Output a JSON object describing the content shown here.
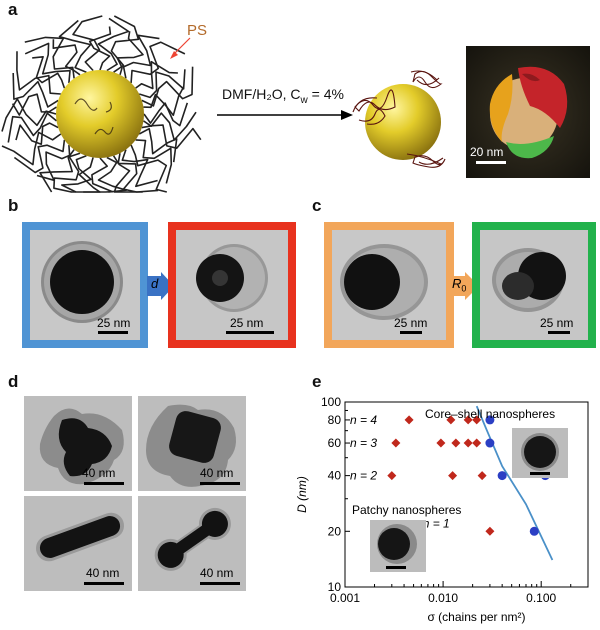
{
  "panels": {
    "a": {
      "label": "a",
      "ps_label": "PS",
      "condition": "DMF/H₂O, C",
      "condition_sub": "w",
      "condition_tail": " = 4%",
      "scale": "20 nm"
    },
    "b": {
      "label": "b",
      "arrow_label": "d",
      "scale_left": "25 nm",
      "scale_right": "25 nm"
    },
    "c": {
      "label": "c",
      "arrow_label": "R",
      "arrow_sub": "0",
      "scale_left": "25 nm",
      "scale_right": "25 nm"
    },
    "d": {
      "label": "d",
      "scales": [
        "40 nm",
        "40 nm",
        "40 nm",
        "40 nm"
      ]
    },
    "e": {
      "label": "e"
    }
  },
  "colors": {
    "blue": "#4f94d4",
    "red": "#e8321e",
    "orange": "#f2a65a",
    "green": "#22b24c",
    "blue_fill": "#3a72c4",
    "marker_red": "#c0281c",
    "marker_blue": "#2b3fc4",
    "curve": "#4a90c8"
  },
  "chart_data": {
    "type": "scatter",
    "x_scale": "log",
    "y_scale": "log",
    "xlim": [
      0.001,
      0.3
    ],
    "ylim": [
      10,
      100
    ],
    "xlabel": "σ (chains per nm²)",
    "ylabel": "D (nm)",
    "x_ticks": [
      "0.001",
      "0.010",
      "0.100"
    ],
    "y_ticks": [
      "10",
      "20",
      "40",
      "60",
      "80",
      "100"
    ],
    "annotations": [
      "Core–shell nanospheres",
      "Patchy nanospheres",
      "n = 4",
      "n = 3",
      "n = 2",
      "n = 1"
    ],
    "series": [
      {
        "name": "Patchy nanospheres",
        "marker": "diamond",
        "points": [
          [
            0.0045,
            80
          ],
          [
            0.0033,
            60
          ],
          [
            0.003,
            40
          ],
          [
            0.012,
            80
          ],
          [
            0.018,
            80
          ],
          [
            0.022,
            80
          ],
          [
            0.0095,
            60
          ],
          [
            0.0135,
            60
          ],
          [
            0.018,
            60
          ],
          [
            0.022,
            60
          ],
          [
            0.0125,
            40
          ],
          [
            0.025,
            40
          ],
          [
            0.03,
            20
          ]
        ]
      },
      {
        "name": "Core–shell nanospheres",
        "marker": "circle",
        "points": [
          [
            0.03,
            80
          ],
          [
            0.03,
            60
          ],
          [
            0.04,
            40
          ],
          [
            0.11,
            40
          ],
          [
            0.085,
            20
          ]
        ]
      }
    ],
    "boundary_curve": [
      [
        0.022,
        95
      ],
      [
        0.028,
        70
      ],
      [
        0.04,
        45
      ],
      [
        0.07,
        28
      ],
      [
        0.13,
        14
      ]
    ]
  }
}
